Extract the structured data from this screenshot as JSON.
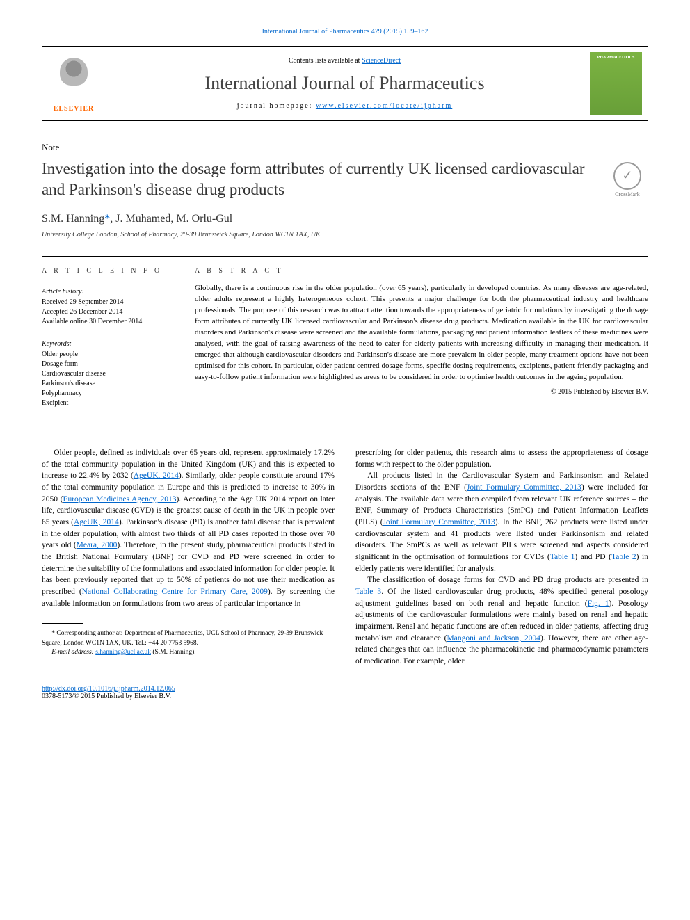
{
  "journal_ref": "International Journal of Pharmaceutics 479 (2015) 159–162",
  "header": {
    "contents_prefix": "Contents lists available at ",
    "contents_link": "ScienceDirect",
    "journal_name": "International Journal of Pharmaceutics",
    "homepage_prefix": "journal homepage: ",
    "homepage_link": "www.elsevier.com/locate/ijpharm",
    "elsevier_label": "ELSEVIER",
    "cover_label": "PHARMACEUTICS"
  },
  "note_label": "Note",
  "title": "Investigation into the dosage form attributes of currently UK licensed cardiovascular and Parkinson's disease drug products",
  "crossmark_label": "CrossMark",
  "authors": {
    "list": "S.M. Hanning",
    "corr_marker": "*",
    "rest": ", J. Muhamed, M. Orlu-Gul"
  },
  "affiliation": "University College London, School of Pharmacy, 29-39 Brunswick Square, London WC1N 1AX, UK",
  "article_info": {
    "heading": "A R T I C L E   I N F O",
    "history_label": "Article history:",
    "history": "Received 29 September 2014\nAccepted 26 December 2014\nAvailable online 30 December 2014",
    "keywords_label": "Keywords:",
    "keywords": "Older people\nDosage form\nCardiovascular disease\nParkinson's disease\nPolypharmacy\nExcipient"
  },
  "abstract": {
    "heading": "A B S T R A C T",
    "text": "Globally, there is a continuous rise in the older population (over 65 years), particularly in developed countries. As many diseases are age-related, older adults represent a highly heterogeneous cohort. This presents a major challenge for both the pharmaceutical industry and healthcare professionals. The purpose of this research was to attract attention towards the appropriateness of geriatric formulations by investigating the dosage form attributes of currently UK licensed cardiovascular and Parkinson's disease drug products. Medication available in the UK for cardiovascular disorders and Parkinson's disease were screened and the available formulations, packaging and patient information leaflets of these medicines were analysed, with the goal of raising awareness of the need to cater for elderly patients with increasing difficulty in managing their medication. It emerged that although cardiovascular disorders and Parkinson's disease are more prevalent in older people, many treatment options have not been optimised for this cohort. In particular, older patient centred dosage forms, specific dosing requirements, excipients, patient-friendly packaging and easy-to-follow patient information were highlighted as areas to be considered in order to optimise health outcomes in the ageing population.",
    "copyright": "© 2015 Published by Elsevier B.V."
  },
  "body": {
    "col1": {
      "p1a": "Older people, defined as individuals over 65 years old, represent approximately 17.2% of the total community population in the United Kingdom (UK) and this is expected to increase to 22.4% by 2032 (",
      "r1": "AgeUK, 2014",
      "p1b": "). Similarly, older people constitute around 17% of the total community population in Europe and this is predicted to increase to 30% in 2050 (",
      "r2": "European Medicines Agency, 2013",
      "p1c": "). According to the Age UK 2014 report on later life, cardiovascular disease (CVD) is the greatest cause of death in the UK in people over 65 years (",
      "r3": "AgeUK, 2014",
      "p1d": "). Parkinson's disease (PD) is another fatal disease that is prevalent in the older population, with almost two thirds of all PD cases reported in those over 70 years old (",
      "r4": "Meara, 2000",
      "p1e": "). Therefore, in the present study, pharmaceutical products listed in the British National Formulary (BNF) for CVD and PD were screened in order to determine the suitability of the formulations and associated information for older people. It has been previously reported that up to 50% of patients do not use their medication as prescribed (",
      "r5": "National Collaborating Centre for Primary Care, 2009",
      "p1f": "). By screening the available information on formulations from two areas of particular importance in"
    },
    "col2": {
      "p1": "prescribing for older patients, this research aims to assess the appropriateness of dosage forms with respect to the older population.",
      "p2a": "All products listed in the Cardiovascular System and Parkinsonism and Related Disorders sections of the BNF (",
      "r1": "Joint Formulary Committee, 2013",
      "p2b": ") were included for analysis. The available data were then compiled from relevant UK reference sources – the BNF, Summary of Products Characteristics (SmPC) and Patient Information Leaflets (PILS) (",
      "r2": "Joint Formulary Committee, 2013",
      "p2c": "). In the BNF, 262 products were listed under cardiovascular system and 41 products were listed under Parkinsonism and related disorders. The SmPCs as well as relevant PILs were screened and aspects considered significant in the optimisation of formulations for CVDs (",
      "r3": "Table 1",
      "p2d": ") and PD (",
      "r4": "Table 2",
      "p2e": ") in elderly patients were identified for analysis.",
      "p3a": "The classification of dosage forms for CVD and PD drug products are presented in ",
      "r5": "Table 3",
      "p3b": ". Of the listed cardiovascular drug products, 48% specified general posology adjustment guidelines based on both renal and hepatic function (",
      "r6": "Fig. 1",
      "p3c": "). Posology adjustments of the cardiovascular formulations were mainly based on renal and hepatic impairment. Renal and hepatic functions are often reduced in older patients, affecting drug metabolism and clearance (",
      "r7": "Mangoni and Jackson, 2004",
      "p3d": "). However, there are other age-related changes that can influence the pharmacokinetic and pharmacodynamic parameters of medication. For example, older"
    }
  },
  "footnote": {
    "corr": "* Corresponding author at: Department of Pharmaceutics, UCL School of Pharmacy, 29-39 Brunswick Square, London WC1N 1AX, UK. Tel.: +44 20 7753 5968.",
    "email_label": "E-mail address: ",
    "email": "s.hanning@ucl.ac.uk",
    "email_suffix": " (S.M. Hanning)."
  },
  "footer": {
    "doi": "http://dx.doi.org/10.1016/j.ijpharm.2014.12.065",
    "issn": "0378-5173/© 2015 Published by Elsevier B.V."
  }
}
